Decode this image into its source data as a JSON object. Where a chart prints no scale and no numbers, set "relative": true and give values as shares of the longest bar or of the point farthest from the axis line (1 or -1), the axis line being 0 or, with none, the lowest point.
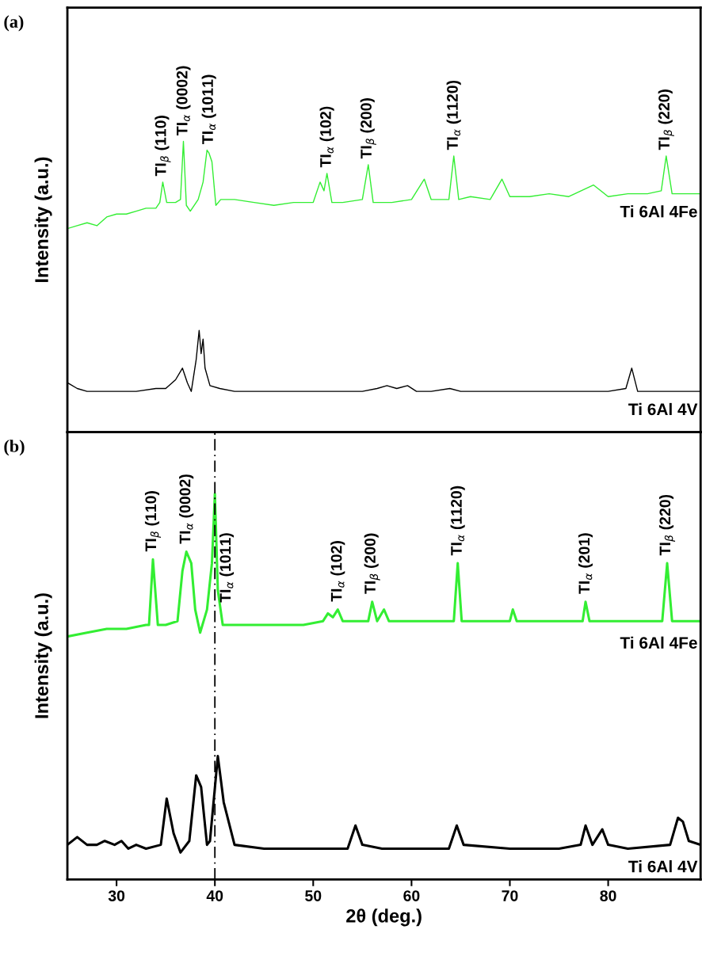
{
  "chart_data": [
    {
      "type": "line",
      "relative": true,
      "ylabel": "Intensity (a.u.)",
      "xlim": [
        25,
        89.4
      ],
      "tick_labels": false,
      "legend": false,
      "grid": false,
      "annotations": [
        "(a)",
        {
          "text": "TI$_{β}$ (110)",
          "x": 34.7,
          "y": 0.86
        },
        {
          "text": "TI$_{α}$ (0002)",
          "x": 36.8,
          "y": 1.0
        },
        {
          "text": "TI$_{α}$ (1011)",
          "x": 39.4,
          "y": 0.97
        },
        {
          "text": "TI$_{α}$ (102)",
          "x": 51.4,
          "y": 0.89
        },
        {
          "text": "TI$_{β}$ (200)",
          "x": 55.6,
          "y": 0.92
        },
        {
          "text": "TI$_{α}$ (1120)",
          "x": 64.3,
          "y": 0.95
        },
        {
          "text": "TI$_{β}$ (220)",
          "x": 85.9,
          "y": 0.95
        }
      ],
      "series": [
        {
          "name": "Ti 6Al 4Fe",
          "color": "#33ee33",
          "x": [
            25,
            26,
            27,
            28,
            29,
            30,
            31,
            32,
            33,
            34,
            34.4,
            34.7,
            35.1,
            36,
            36.5,
            36.8,
            37.1,
            37.5,
            38.3,
            38.8,
            39.2,
            39.4,
            39.7,
            40.1,
            40.6,
            42,
            44,
            46,
            48,
            50,
            50.7,
            51.1,
            51.4,
            51.9,
            53,
            55,
            55.6,
            56.1,
            58,
            60,
            61.3,
            62,
            63.8,
            64.3,
            64.8,
            66,
            68,
            69.2,
            70,
            72,
            74,
            76,
            78.5,
            80,
            82,
            84,
            85.4,
            85.9,
            86.5,
            88,
            89.4
          ],
          "values": [
            0.7,
            0.71,
            0.72,
            0.71,
            0.74,
            0.75,
            0.75,
            0.76,
            0.77,
            0.77,
            0.79,
            0.86,
            0.79,
            0.79,
            0.8,
            1.0,
            0.78,
            0.76,
            0.8,
            0.86,
            0.97,
            0.96,
            0.93,
            0.78,
            0.8,
            0.8,
            0.79,
            0.78,
            0.79,
            0.79,
            0.86,
            0.83,
            0.89,
            0.79,
            0.79,
            0.8,
            0.92,
            0.79,
            0.79,
            0.8,
            0.87,
            0.8,
            0.8,
            0.95,
            0.8,
            0.81,
            0.8,
            0.87,
            0.81,
            0.81,
            0.82,
            0.81,
            0.85,
            0.81,
            0.82,
            0.82,
            0.83,
            0.95,
            0.82,
            0.82,
            0.82
          ]
        },
        {
          "name": "Ti 6Al 4V",
          "color": "#000000",
          "x": [
            25,
            26,
            27,
            28,
            30,
            32,
            34,
            35,
            36,
            36.7,
            37.2,
            37.6,
            38.1,
            38.4,
            38.6,
            38.8,
            39.0,
            39.5,
            40.5,
            42,
            45,
            50,
            55,
            56.5,
            57.5,
            58.5,
            59.6,
            60.5,
            62,
            63.9,
            65,
            67,
            70,
            75,
            80,
            81.8,
            82.4,
            83,
            85,
            87,
            89.4
          ],
          "values": [
            0.17,
            0.15,
            0.14,
            0.14,
            0.14,
            0.14,
            0.15,
            0.15,
            0.18,
            0.22,
            0.17,
            0.14,
            0.25,
            0.35,
            0.27,
            0.32,
            0.22,
            0.16,
            0.15,
            0.14,
            0.14,
            0.14,
            0.14,
            0.15,
            0.16,
            0.15,
            0.16,
            0.14,
            0.14,
            0.15,
            0.14,
            0.14,
            0.14,
            0.14,
            0.14,
            0.15,
            0.22,
            0.14,
            0.14,
            0.14,
            0.14
          ]
        }
      ]
    },
    {
      "type": "line",
      "relative": true,
      "ylabel": "Intensity (a.u.)",
      "xlabel": "2θ (deg.)",
      "xlim": [
        25,
        89.4
      ],
      "xticks": [
        30,
        40,
        50,
        60,
        70,
        80
      ],
      "tick_labels": "x",
      "legend": false,
      "grid": false,
      "ref_lines": [
        {
          "axis": "x",
          "value": 40,
          "color": "#000000",
          "line_style": "dashed"
        }
      ],
      "annotations": [
        "(b)",
        {
          "text": "TI$_{β}$ (110)",
          "x": 33.7,
          "y": 0.83
        },
        {
          "text": "TI$_{α}$ (0002)",
          "x": 37.1,
          "y": 0.85
        },
        {
          "text": "TI$_{α}$ (1011)",
          "x": 40.0,
          "y": 1.0
        },
        {
          "text": "TI$_{α}$ (102)",
          "x": 52.5,
          "y": 0.7
        },
        {
          "text": "TI$_{β}$ (200)",
          "x": 56.0,
          "y": 0.72
        },
        {
          "text": "TI$_{α}$ (1120)",
          "x": 64.7,
          "y": 0.82
        },
        {
          "text": "TI$_{α}$ (201)",
          "x": 77.7,
          "y": 0.72
        },
        {
          "text": "TI$_{β}$ (220)",
          "x": 86.0,
          "y": 0.82
        }
      ],
      "series": [
        {
          "name": "Ti 6Al 4Fe",
          "color": "#33ee33",
          "x": [
            25,
            27,
            29,
            31,
            33,
            33.3,
            33.7,
            34.2,
            35,
            36.2,
            36.7,
            37.1,
            37.6,
            38.0,
            38.5,
            39.2,
            39.7,
            40.0,
            40.3,
            40.8,
            43,
            46,
            49,
            51,
            51.5,
            52,
            52.5,
            53,
            55,
            55.6,
            56.0,
            56.5,
            57.2,
            57.7,
            60,
            63,
            64.3,
            64.7,
            65.1,
            67,
            70,
            70.3,
            70.7,
            73,
            77,
            77.4,
            77.7,
            78.1,
            80,
            83,
            85.5,
            86.0,
            86.5,
            88,
            89.4
          ],
          "values": [
            0.63,
            0.64,
            0.65,
            0.65,
            0.66,
            0.66,
            0.83,
            0.66,
            0.66,
            0.67,
            0.8,
            0.85,
            0.82,
            0.7,
            0.64,
            0.7,
            0.82,
            1.0,
            0.75,
            0.66,
            0.66,
            0.66,
            0.66,
            0.67,
            0.69,
            0.68,
            0.7,
            0.67,
            0.67,
            0.67,
            0.72,
            0.67,
            0.7,
            0.67,
            0.67,
            0.67,
            0.67,
            0.82,
            0.67,
            0.67,
            0.67,
            0.7,
            0.67,
            0.67,
            0.67,
            0.67,
            0.72,
            0.67,
            0.67,
            0.67,
            0.67,
            0.82,
            0.67,
            0.67,
            0.67
          ]
        },
        {
          "name": "Ti 6Al 4V",
          "color": "#000000",
          "x": [
            25,
            26,
            27,
            28,
            28.8,
            29.8,
            30.5,
            31.2,
            32,
            33,
            34.5,
            35.1,
            35.8,
            36.5,
            37.4,
            38.1,
            38.6,
            39.2,
            39.5,
            40.3,
            40.9,
            42,
            45,
            50,
            53.5,
            54.3,
            55,
            57,
            60,
            63.8,
            64.6,
            65.3,
            70,
            75,
            77.2,
            77.7,
            78.4,
            79.4,
            80,
            82,
            86.3,
            87.1,
            87.6,
            88.2,
            89.4
          ],
          "values": [
            0.09,
            0.11,
            0.09,
            0.09,
            0.1,
            0.09,
            0.1,
            0.08,
            0.09,
            0.08,
            0.09,
            0.21,
            0.12,
            0.07,
            0.1,
            0.27,
            0.24,
            0.09,
            0.1,
            0.32,
            0.2,
            0.09,
            0.08,
            0.08,
            0.08,
            0.14,
            0.09,
            0.08,
            0.08,
            0.08,
            0.14,
            0.09,
            0.08,
            0.08,
            0.09,
            0.14,
            0.09,
            0.13,
            0.09,
            0.08,
            0.09,
            0.16,
            0.15,
            0.1,
            0.09
          ]
        }
      ]
    }
  ]
}
